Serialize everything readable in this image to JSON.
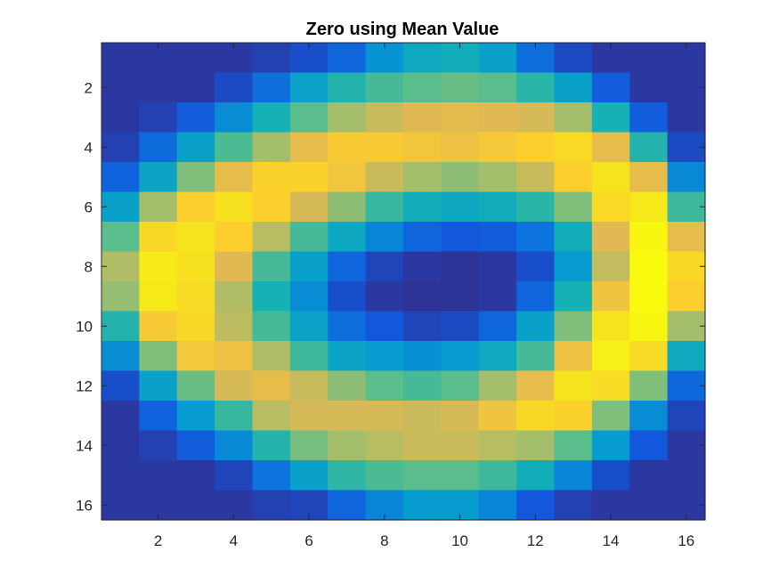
{
  "chart_data": {
    "type": "heatmap",
    "title": "Zero using Mean Value",
    "xlabel": "",
    "ylabel": "",
    "xlim": [
      0.5,
      16.5
    ],
    "ylim": [
      0.5,
      16.5
    ],
    "y_direction": "reverse",
    "grid": false,
    "colormap": "parula",
    "color_range": [
      0,
      1
    ],
    "x_ticks": [
      2,
      4,
      6,
      8,
      10,
      12,
      14,
      16
    ],
    "y_ticks": [
      2,
      4,
      6,
      8,
      10,
      12,
      14,
      16
    ],
    "x_tick_labels": [
      "2",
      "4",
      "6",
      "8",
      "10",
      "12",
      "14",
      "16"
    ],
    "y_tick_labels": [
      "2",
      "4",
      "6",
      "8",
      "10",
      "12",
      "14",
      "16"
    ],
    "values": [
      [
        0.03,
        0.03,
        0.03,
        0.03,
        0.05,
        0.08,
        0.15,
        0.28,
        0.36,
        0.38,
        0.32,
        0.18,
        0.07,
        0.03,
        0.03,
        0.03
      ],
      [
        0.03,
        0.03,
        0.03,
        0.07,
        0.18,
        0.33,
        0.42,
        0.47,
        0.5,
        0.52,
        0.5,
        0.43,
        0.32,
        0.12,
        0.03,
        0.03
      ],
      [
        0.03,
        0.05,
        0.12,
        0.26,
        0.4,
        0.5,
        0.6,
        0.66,
        0.7,
        0.71,
        0.7,
        0.68,
        0.6,
        0.4,
        0.12,
        0.03
      ],
      [
        0.05,
        0.17,
        0.32,
        0.48,
        0.6,
        0.72,
        0.78,
        0.78,
        0.76,
        0.74,
        0.77,
        0.8,
        0.85,
        0.72,
        0.42,
        0.07
      ],
      [
        0.14,
        0.34,
        0.55,
        0.72,
        0.82,
        0.82,
        0.76,
        0.66,
        0.6,
        0.57,
        0.6,
        0.66,
        0.8,
        0.9,
        0.72,
        0.25
      ],
      [
        0.32,
        0.6,
        0.8,
        0.88,
        0.8,
        0.68,
        0.57,
        0.45,
        0.38,
        0.35,
        0.37,
        0.43,
        0.55,
        0.85,
        0.92,
        0.46
      ],
      [
        0.5,
        0.84,
        0.9,
        0.8,
        0.63,
        0.47,
        0.35,
        0.24,
        0.15,
        0.1,
        0.12,
        0.2,
        0.38,
        0.7,
        0.98,
        0.72
      ],
      [
        0.62,
        0.93,
        0.88,
        0.7,
        0.47,
        0.32,
        0.15,
        0.06,
        0.03,
        0.02,
        0.03,
        0.08,
        0.3,
        0.65,
        1.0,
        0.84
      ],
      [
        0.58,
        0.92,
        0.86,
        0.62,
        0.4,
        0.26,
        0.08,
        0.03,
        0.02,
        0.02,
        0.03,
        0.15,
        0.4,
        0.75,
        1.0,
        0.8
      ],
      [
        0.42,
        0.78,
        0.84,
        0.64,
        0.47,
        0.33,
        0.18,
        0.1,
        0.06,
        0.07,
        0.15,
        0.32,
        0.55,
        0.9,
        0.98,
        0.6
      ],
      [
        0.26,
        0.55,
        0.77,
        0.74,
        0.62,
        0.46,
        0.34,
        0.3,
        0.27,
        0.3,
        0.36,
        0.47,
        0.74,
        0.95,
        0.86,
        0.36
      ],
      [
        0.08,
        0.32,
        0.52,
        0.68,
        0.72,
        0.66,
        0.57,
        0.5,
        0.47,
        0.5,
        0.6,
        0.72,
        0.9,
        0.86,
        0.55,
        0.16
      ],
      [
        0.03,
        0.14,
        0.3,
        0.45,
        0.63,
        0.68,
        0.68,
        0.68,
        0.66,
        0.68,
        0.75,
        0.84,
        0.82,
        0.55,
        0.26,
        0.06
      ],
      [
        0.03,
        0.05,
        0.12,
        0.25,
        0.42,
        0.54,
        0.6,
        0.63,
        0.66,
        0.66,
        0.63,
        0.6,
        0.5,
        0.3,
        0.1,
        0.03
      ],
      [
        0.03,
        0.03,
        0.03,
        0.06,
        0.2,
        0.32,
        0.44,
        0.48,
        0.5,
        0.5,
        0.46,
        0.38,
        0.24,
        0.08,
        0.03,
        0.03
      ],
      [
        0.03,
        0.03,
        0.03,
        0.03,
        0.05,
        0.06,
        0.15,
        0.24,
        0.3,
        0.3,
        0.24,
        0.1,
        0.05,
        0.03,
        0.03,
        0.03
      ]
    ]
  }
}
